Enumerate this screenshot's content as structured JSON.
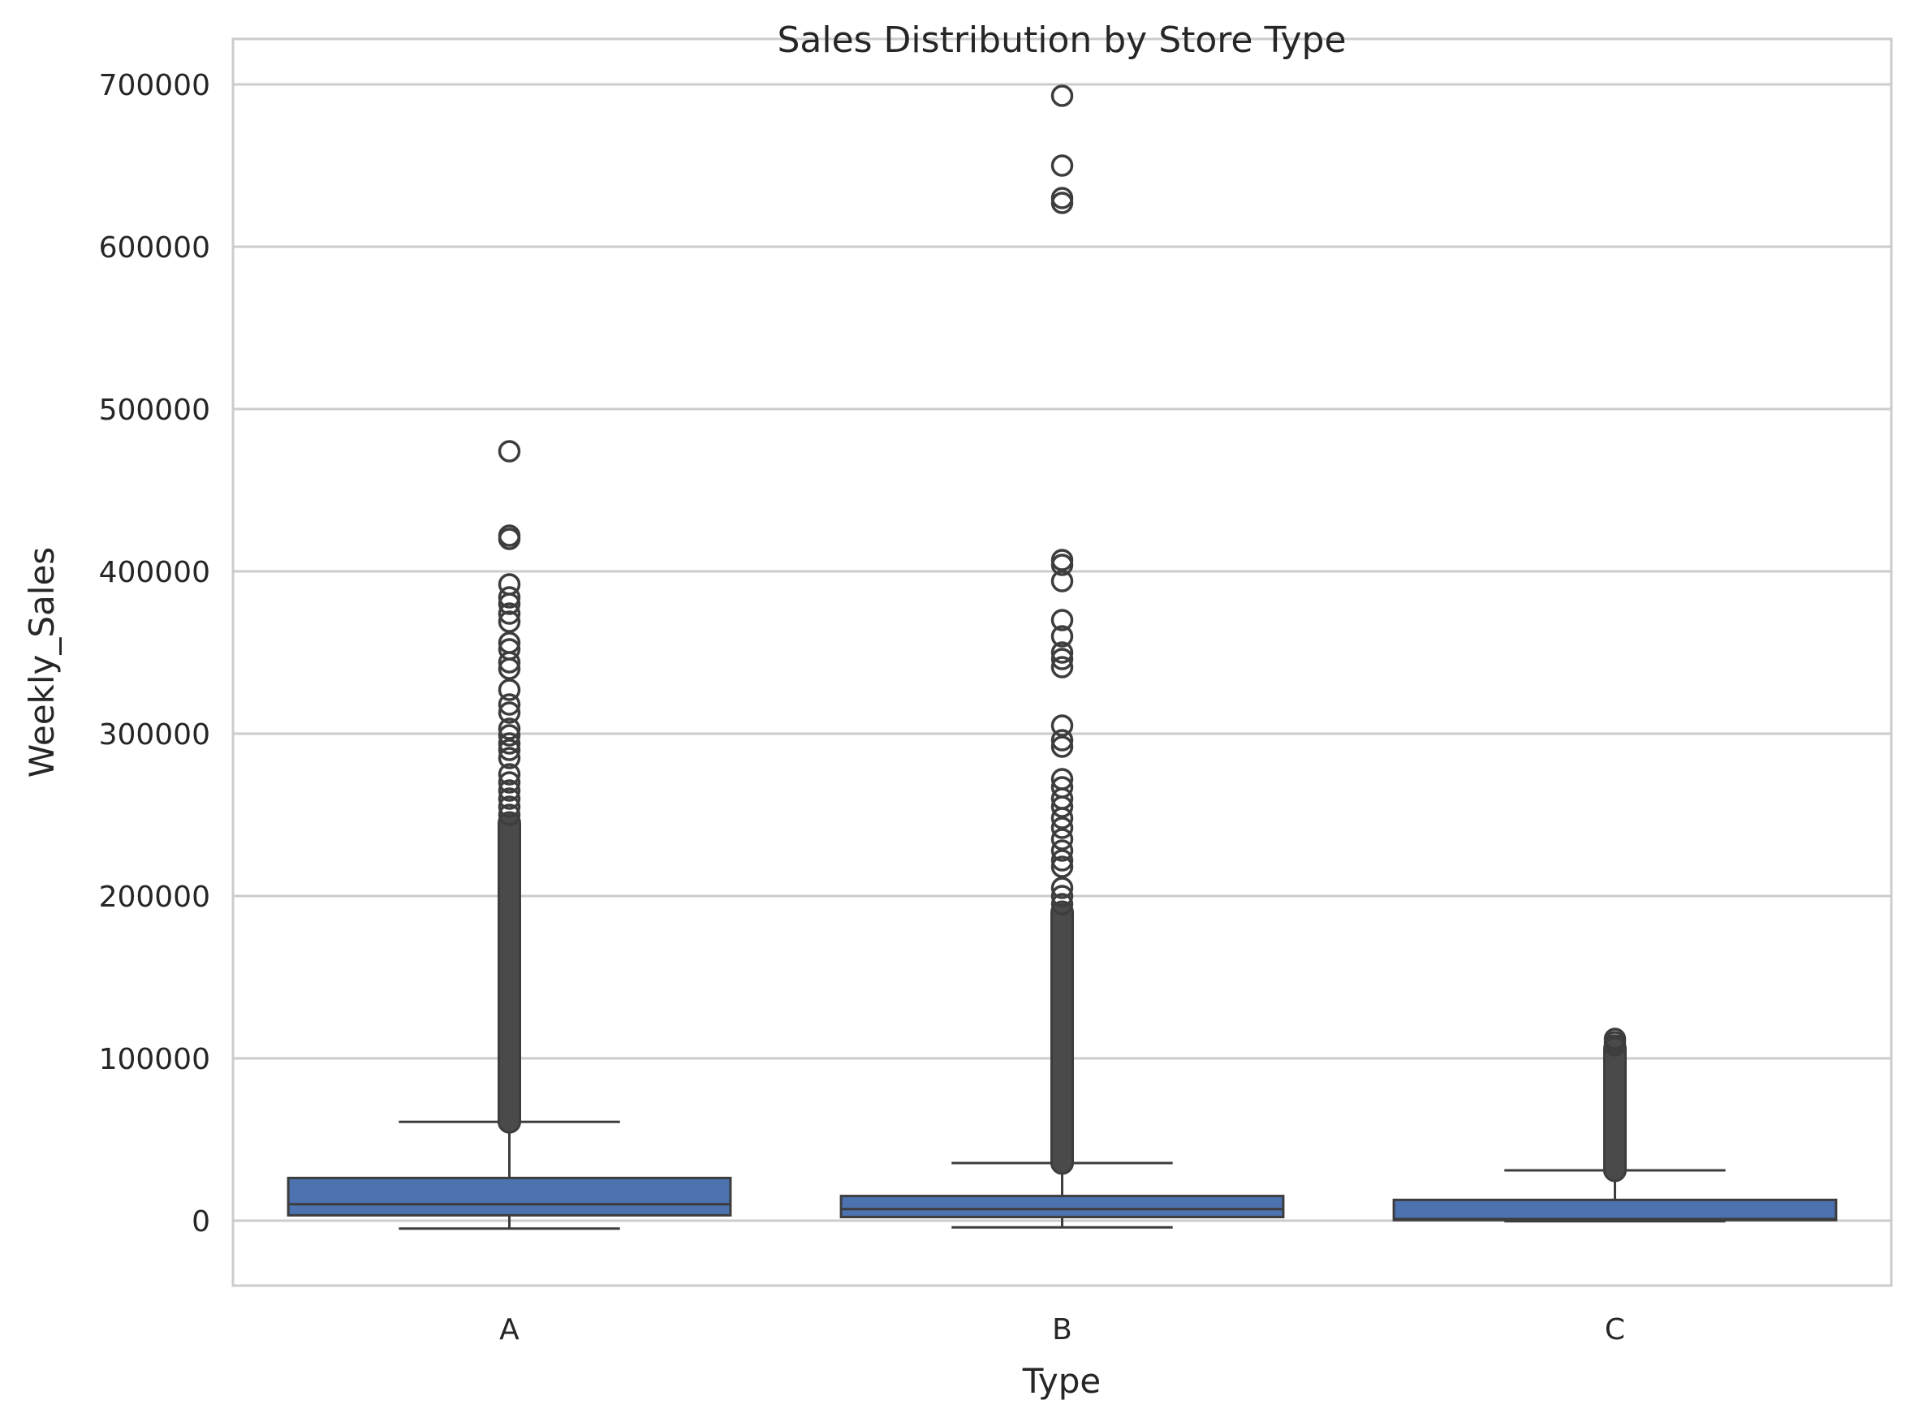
{
  "chart_data": {
    "type": "box",
    "title": "Sales Distribution by Store Type",
    "xlabel": "Type",
    "ylabel": "Weekly_Sales",
    "categories": [
      "A",
      "B",
      "C"
    ],
    "ylim": [
      -40000,
      728000
    ],
    "yticks": [
      0,
      100000,
      200000,
      300000,
      400000,
      500000,
      600000,
      700000
    ],
    "ytick_labels": [
      "0",
      "100000",
      "200000",
      "300000",
      "400000",
      "500000",
      "600000",
      "700000"
    ],
    "grid": true,
    "colors": {
      "box_fill": "#4c72b0",
      "line": "#3d3d3d",
      "grid": "#cccccc",
      "background": "#ffffff"
    },
    "boxes": [
      {
        "category": "A",
        "whisker_low": -4900,
        "q1": 3300,
        "median": 10100,
        "q3": 26300,
        "whisker_high": 60900,
        "outlier_band": [
          60900,
          245000
        ],
        "outliers": [
          474000,
          422000,
          420000,
          392000,
          384000,
          380000,
          374000,
          369000,
          356000,
          352000,
          344000,
          340000,
          327000,
          318000,
          313000,
          303000,
          299000,
          294000,
          290000,
          285000,
          275000,
          270000,
          265000,
          260000,
          255000,
          250000
        ]
      },
      {
        "category": "B",
        "whisker_low": -4100,
        "q1": 2200,
        "median": 7100,
        "q3": 15200,
        "whisker_high": 35500,
        "outlier_band": [
          35500,
          190000
        ],
        "outliers": [
          693000,
          650000,
          630000,
          627000,
          407000,
          404000,
          394000,
          370000,
          360000,
          350000,
          346000,
          341000,
          305000,
          296000,
          292000,
          272000,
          267000,
          260000,
          255000,
          248000,
          242000,
          235000,
          228000,
          222000,
          218000,
          205000,
          200000,
          195000
        ]
      },
      {
        "category": "C",
        "whisker_low": -380,
        "q1": 330,
        "median": 1000,
        "q3": 12800,
        "whisker_high": 31000,
        "outlier_band": [
          31000,
          106000
        ],
        "outliers": [
          112000,
          110000,
          108000
        ]
      }
    ]
  }
}
